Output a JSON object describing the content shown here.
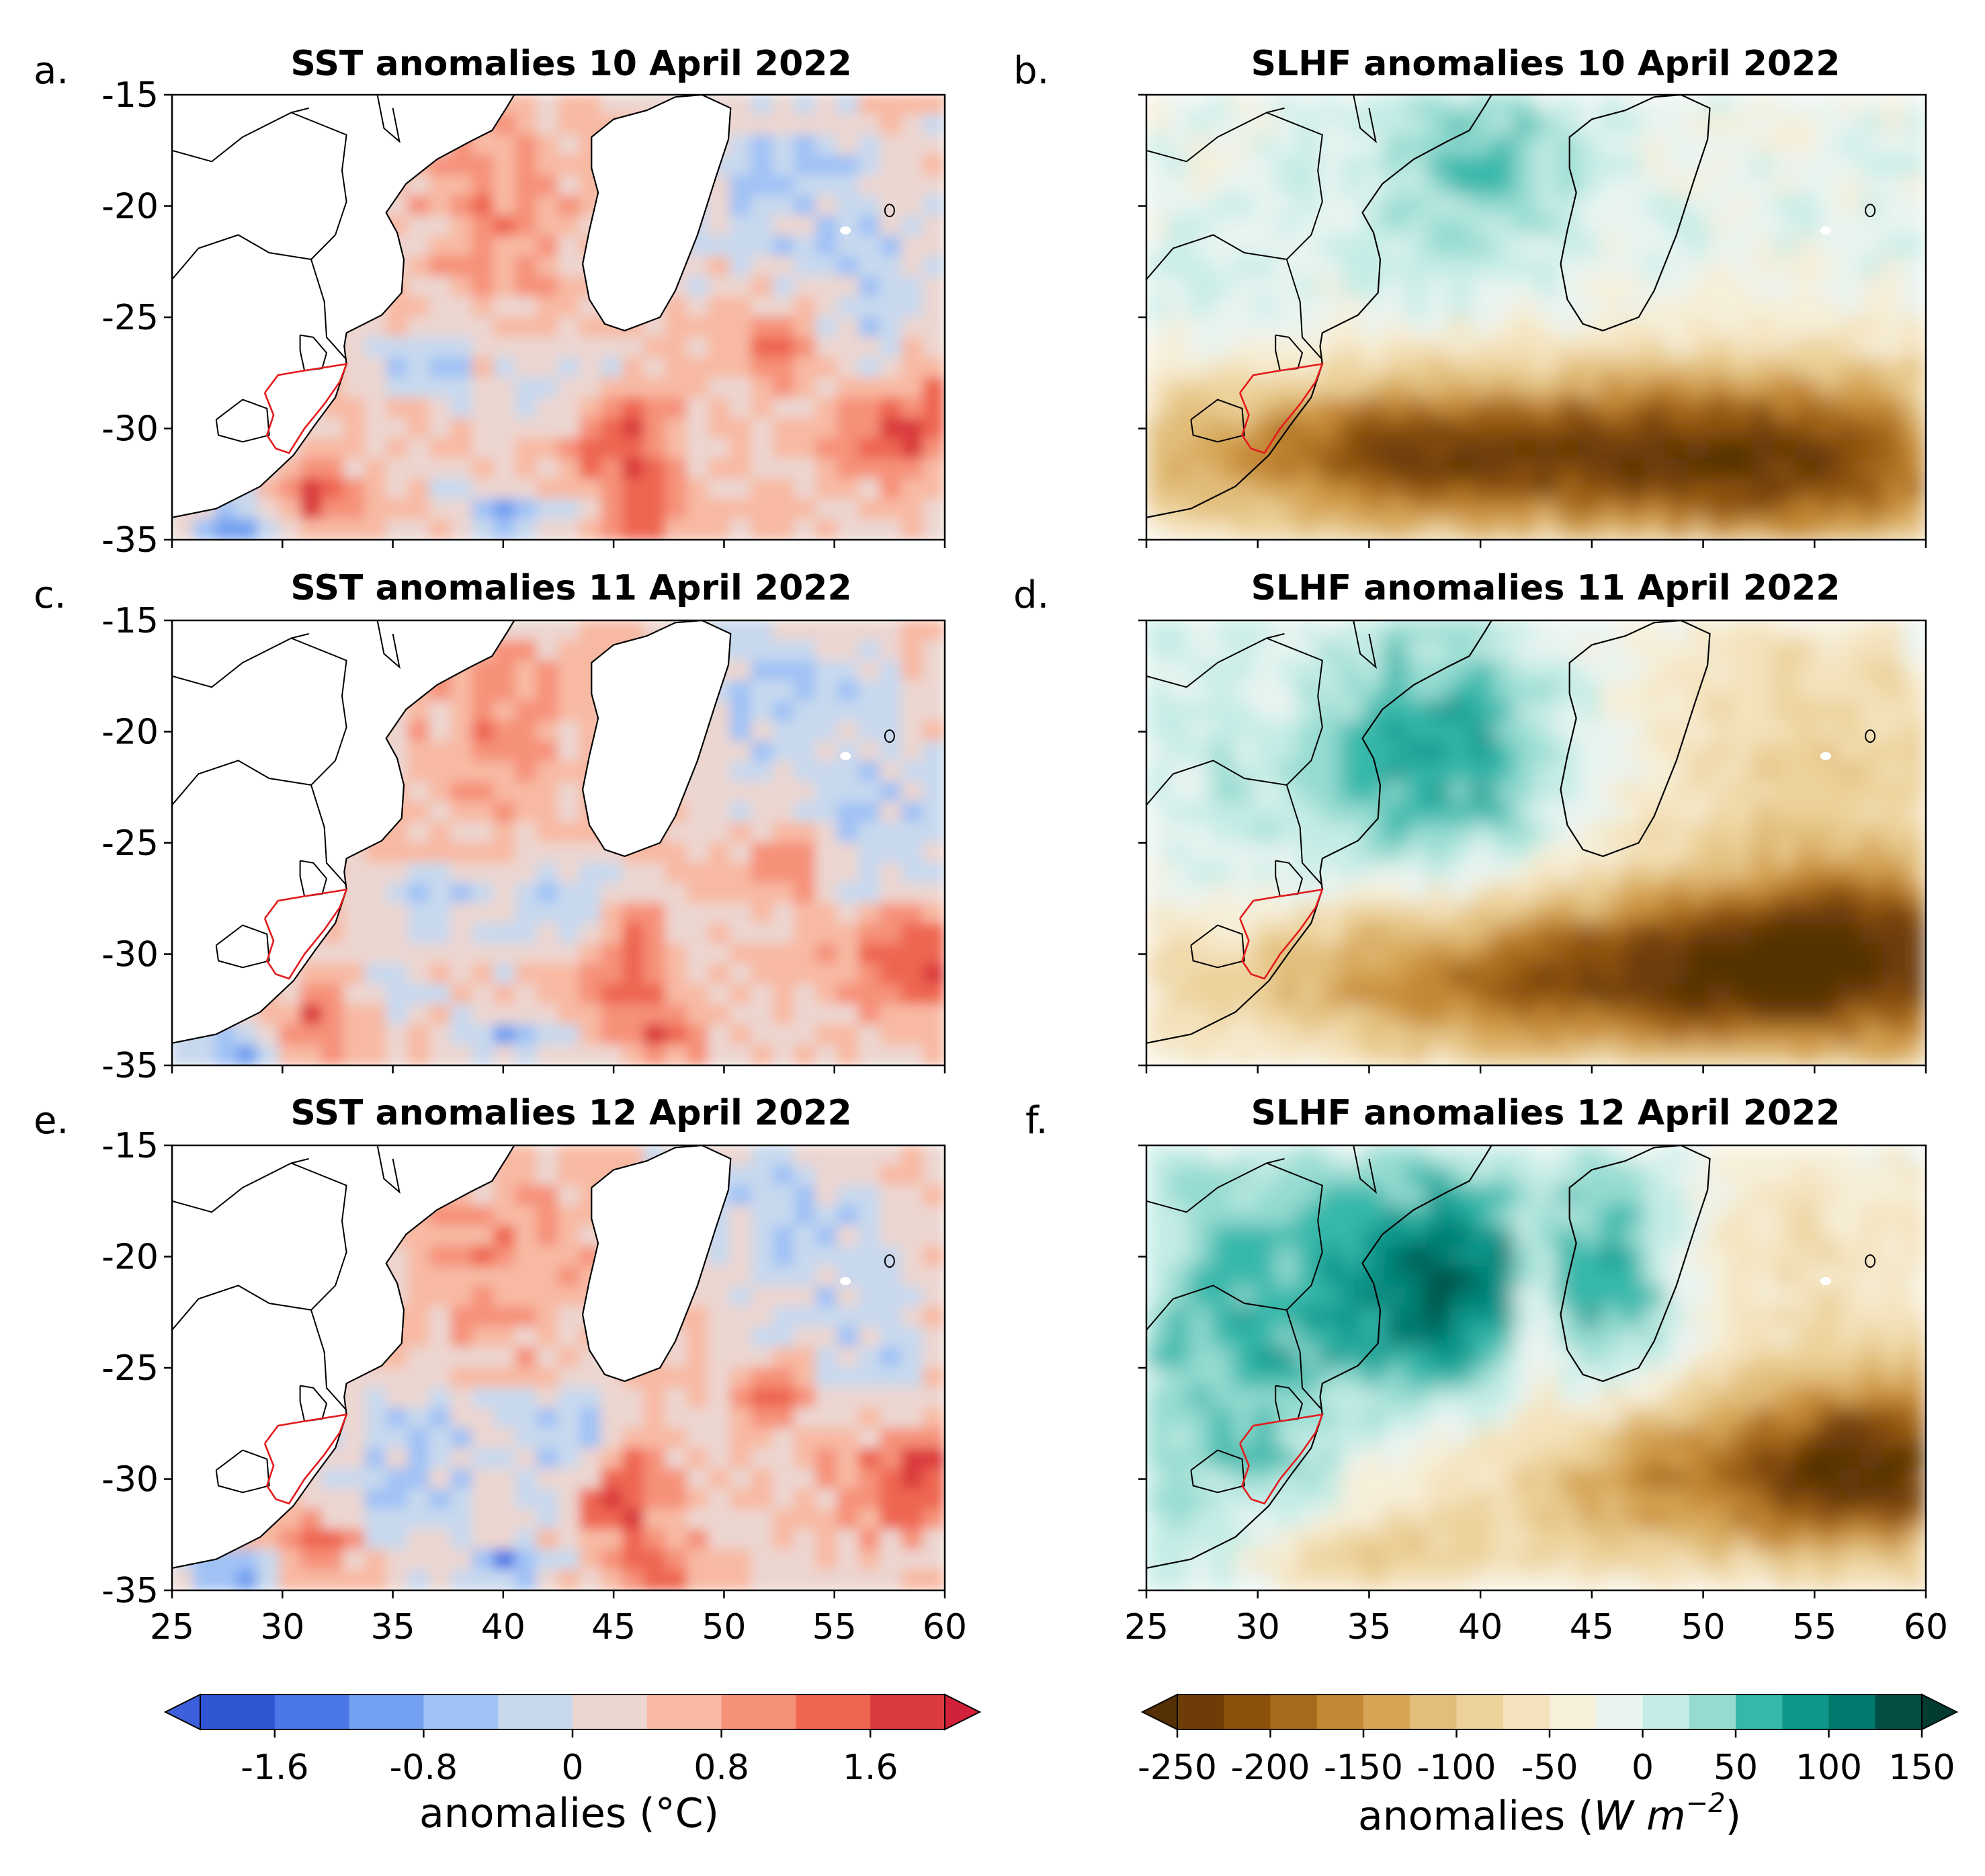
{
  "chart_data": {
    "type": "heatmap",
    "grid": false,
    "panels": [
      {
        "label": "a.",
        "title": "SST anomalies 10 April 2022",
        "variable": "SST"
      },
      {
        "label": "b.",
        "title": "SLHF anomalies 10 April 2022",
        "variable": "SLHF"
      },
      {
        "label": "c.",
        "title": "SST anomalies 11 April 2022",
        "variable": "SST"
      },
      {
        "label": "d.",
        "title": "SLHF anomalies 11 April 2022",
        "variable": "SLHF"
      },
      {
        "label": "e.",
        "title": "SST anomalies 12 April 2022",
        "variable": "SST"
      },
      {
        "label": "f.",
        "title": "SLHF anomalies 12 April 2022",
        "variable": "SLHF"
      }
    ],
    "xlim": [
      25,
      60
    ],
    "ylim": [
      -35,
      -15
    ],
    "xticks": [
      25,
      30,
      35,
      40,
      45,
      50,
      55,
      60
    ],
    "yticks": [
      -15,
      -20,
      -25,
      -30,
      -35
    ],
    "xtick_labels": [
      "25",
      "30",
      "35",
      "40",
      "45",
      "50",
      "55",
      "60"
    ],
    "ytick_labels": [
      "-15",
      "-20",
      "-25",
      "-30",
      "-35"
    ],
    "colorbars": [
      {
        "variable": "SST",
        "label": "anomalies (°C)",
        "levels": [
          -2.0,
          -1.6,
          -1.2,
          -0.8,
          -0.4,
          0.0,
          0.4,
          0.8,
          1.2,
          1.6,
          2.0
        ],
        "colors": [
          "#3056d3",
          "#4b78e6",
          "#73a0f0",
          "#a1c2f5",
          "#c8d9ee",
          "#ecd6d0",
          "#f8b9a3",
          "#f69179",
          "#ee6651",
          "#da3b3d"
        ],
        "under_color": "#3d5fdb",
        "over_color": "#d2223a",
        "ticks": [
          -1.6,
          -0.8,
          0,
          0.8,
          1.6
        ],
        "tick_labels": [
          "-1.6",
          "-0.8",
          "0",
          "0.8",
          "1.6"
        ]
      },
      {
        "variable": "SLHF",
        "label_main": "anomalies (",
        "label_unit_w": "W m",
        "label_exp": "−2",
        "label_close": ")",
        "levels": [
          -250,
          -225,
          -200,
          -175,
          -150,
          -125,
          -100,
          -75,
          -50,
          -25,
          0,
          25,
          50,
          75,
          100,
          125,
          150
        ],
        "colors": [
          "#6e3c07",
          "#8c510a",
          "#a86a1d",
          "#c48835",
          "#d5a555",
          "#e2be7a",
          "#ecd19a",
          "#f4e2bc",
          "#f6efd9",
          "#e9f4f1",
          "#c5ece6",
          "#95dbd1",
          "#35b8aa",
          "#0f978c",
          "#017a6e",
          "#024e42"
        ],
        "under_color": "#543005",
        "over_color": "#003c30",
        "ticks": [
          -250,
          -200,
          -150,
          -100,
          -50,
          0,
          50,
          100,
          150
        ],
        "tick_labels": [
          "-250",
          "-200",
          "-150",
          "-100",
          "-50",
          "0",
          "50",
          "100",
          "150"
        ]
      }
    ],
    "land_color": "#ffffff",
    "coastline_color": "#000000",
    "highlighted_region_color": "#e41a1c"
  }
}
